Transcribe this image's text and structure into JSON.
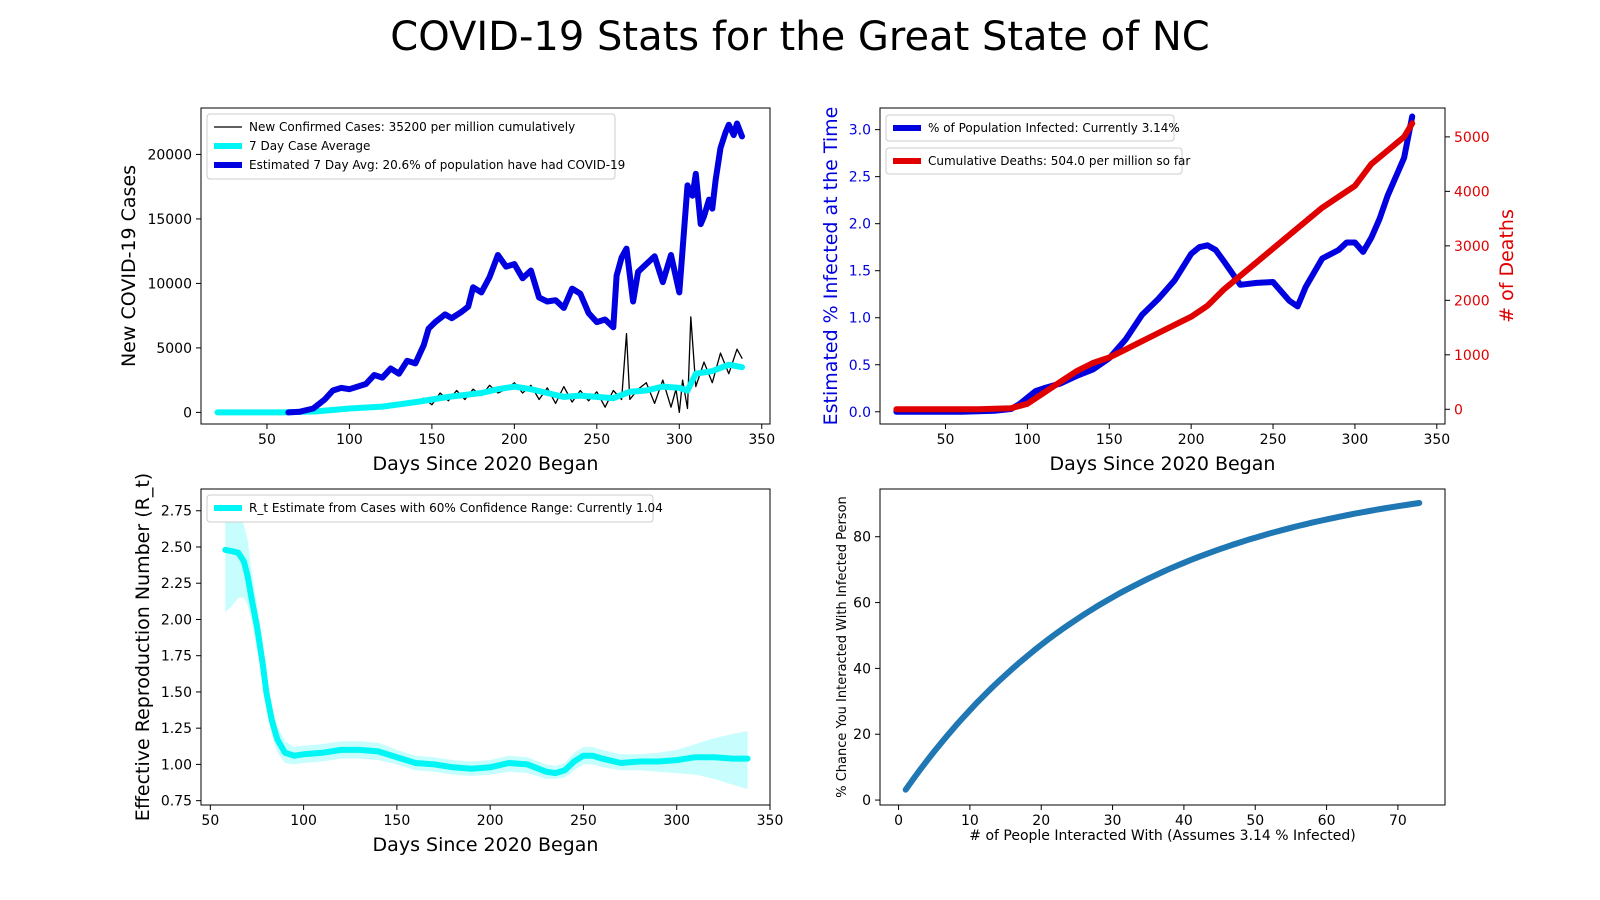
{
  "figure": {
    "suptitle": "COVID-19 Stats for the Great State of NC"
  },
  "chart_data": [
    {
      "id": "cases",
      "type": "line",
      "title": "",
      "xlabel": "Days Since 2020 Began",
      "ylabel": "New COVID-19 Cases",
      "xlim": [
        10,
        355
      ],
      "ylim": [
        -900,
        23600
      ],
      "xticks": [
        50,
        100,
        150,
        200,
        250,
        300,
        350
      ],
      "yticks": [
        0,
        5000,
        10000,
        15000,
        20000
      ],
      "grid": false,
      "legend_position": "top-left",
      "series": [
        {
          "name": "New Confirmed Cases: 35200 per million cumulatively",
          "color": "#000000",
          "x": [
            20,
            60,
            70,
            80,
            90,
            100,
            110,
            120,
            130,
            140,
            145,
            150,
            155,
            160,
            165,
            170,
            175,
            180,
            185,
            190,
            195,
            200,
            205,
            210,
            215,
            220,
            225,
            230,
            235,
            240,
            245,
            250,
            255,
            260,
            265,
            268,
            270,
            275,
            280,
            285,
            290,
            295,
            298,
            300,
            302,
            305,
            307,
            310,
            315,
            320,
            325,
            330,
            335,
            338
          ],
          "y": [
            0,
            0,
            50,
            150,
            250,
            300,
            350,
            450,
            600,
            800,
            1100,
            600,
            1500,
            900,
            1700,
            1000,
            1800,
            1300,
            2100,
            1500,
            1800,
            2300,
            1500,
            2100,
            1000,
            1900,
            700,
            2000,
            800,
            1700,
            900,
            1600,
            400,
            1700,
            1000,
            6100,
            1000,
            1800,
            2300,
            700,
            2500,
            400,
            1800,
            0,
            2500,
            300,
            7400,
            2000,
            3900,
            2300,
            4600,
            3000,
            4900,
            4200
          ]
        },
        {
          "name": "7 Day Case Average",
          "color": "#00f5f5",
          "x": [
            20,
            60,
            80,
            100,
            120,
            140,
            160,
            180,
            190,
            200,
            210,
            220,
            230,
            240,
            250,
            260,
            270,
            280,
            290,
            300,
            305,
            310,
            320,
            330,
            338
          ],
          "y": [
            0,
            0,
            80,
            300,
            450,
            800,
            1200,
            1500,
            1800,
            2000,
            1800,
            1500,
            1200,
            1300,
            1200,
            1100,
            1600,
            1700,
            2000,
            1900,
            1700,
            3000,
            3200,
            3700,
            3500
          ]
        },
        {
          "name": "Estimated 7 Day Avg: 20.6% of population have had COVID-19",
          "color": "#0000e0",
          "x": [
            63,
            70,
            78,
            85,
            90,
            95,
            100,
            110,
            115,
            120,
            125,
            130,
            135,
            140,
            145,
            148,
            152,
            158,
            162,
            168,
            172,
            175,
            180,
            185,
            190,
            195,
            200,
            205,
            210,
            215,
            220,
            225,
            230,
            235,
            240,
            245,
            250,
            255,
            260,
            262,
            265,
            268,
            272,
            275,
            280,
            285,
            290,
            295,
            300,
            305,
            308,
            310,
            313,
            315,
            318,
            320,
            322,
            325,
            328,
            330,
            333,
            335,
            338
          ],
          "y": [
            0,
            50,
            300,
            1000,
            1700,
            1900,
            1800,
            2200,
            2900,
            2700,
            3400,
            3000,
            4000,
            3800,
            5200,
            6500,
            7000,
            7600,
            7300,
            7800,
            8200,
            9700,
            9300,
            10500,
            12200,
            11300,
            11500,
            10400,
            11000,
            8900,
            8600,
            8700,
            8100,
            9600,
            9200,
            7700,
            7000,
            7200,
            6600,
            10600,
            12000,
            12700,
            8600,
            10900,
            11500,
            12100,
            10100,
            12200,
            9300,
            17600,
            16800,
            18500,
            14600,
            15200,
            16500,
            15800,
            18000,
            20500,
            21700,
            22300,
            21500,
            22400,
            21400
          ]
        }
      ]
    },
    {
      "id": "infected_deaths",
      "type": "line",
      "title": "",
      "xlabel": "Days Since 2020 Began",
      "ylabel": "Estimated % Infected at the Time",
      "y2label": "# of Deaths",
      "xlim": [
        10,
        355
      ],
      "ylim": [
        -0.13,
        3.23
      ],
      "y2lim": [
        -270,
        5530
      ],
      "xticks": [
        50,
        100,
        150,
        200,
        250,
        300,
        350
      ],
      "yticks": [
        0.0,
        0.5,
        1.0,
        1.5,
        2.0,
        2.5,
        3.0
      ],
      "y2ticks": [
        0,
        1000,
        2000,
        3000,
        4000,
        5000
      ],
      "grid": false,
      "legend_position": "top-left",
      "colors": {
        "left_axis": "#0000e0",
        "right_axis": "#e00000"
      },
      "series": [
        {
          "name": "% of Population Infected: Currently 3.14%",
          "color": "#0000e0",
          "axis": "left",
          "x": [
            20,
            60,
            80,
            90,
            95,
            100,
            105,
            110,
            120,
            130,
            140,
            150,
            160,
            170,
            180,
            190,
            200,
            205,
            210,
            215,
            220,
            230,
            240,
            250,
            260,
            265,
            270,
            280,
            290,
            295,
            300,
            305,
            310,
            315,
            320,
            325,
            330,
            335
          ],
          "y": [
            0,
            0,
            0.01,
            0.03,
            0.08,
            0.15,
            0.22,
            0.25,
            0.3,
            0.38,
            0.45,
            0.57,
            0.77,
            1.03,
            1.2,
            1.4,
            1.68,
            1.75,
            1.77,
            1.72,
            1.6,
            1.35,
            1.37,
            1.38,
            1.18,
            1.12,
            1.33,
            1.63,
            1.72,
            1.8,
            1.8,
            1.7,
            1.85,
            2.05,
            2.3,
            2.5,
            2.7,
            3.14
          ]
        },
        {
          "name": "Cumulative Deaths: 504.0 per million so far",
          "color": "#e00000",
          "axis": "right",
          "x": [
            20,
            70,
            90,
            100,
            110,
            120,
            130,
            140,
            150,
            160,
            170,
            180,
            190,
            200,
            210,
            220,
            230,
            240,
            250,
            260,
            270,
            280,
            290,
            300,
            305,
            310,
            320,
            330,
            335
          ],
          "y": [
            0,
            0,
            20,
            100,
            300,
            500,
            700,
            850,
            950,
            1100,
            1250,
            1400,
            1550,
            1700,
            1900,
            2200,
            2450,
            2700,
            2950,
            3200,
            3450,
            3700,
            3900,
            4100,
            4300,
            4500,
            4750,
            5000,
            5250
          ]
        }
      ]
    },
    {
      "id": "rt",
      "type": "line",
      "title": "",
      "xlabel": "Days Since 2020 Began",
      "ylabel": "Effective Reproduction Number (R_t)",
      "xlim": [
        45,
        350
      ],
      "ylim": [
        0.72,
        2.9
      ],
      "xticks": [
        50,
        100,
        150,
        200,
        250,
        300,
        350
      ],
      "yticks": [
        0.75,
        1.0,
        1.25,
        1.5,
        1.75,
        2.0,
        2.25,
        2.5,
        2.75
      ],
      "grid": false,
      "legend_position": "top-left",
      "series": [
        {
          "name": "R_t Estimate from Cases with 60% Confidence Range: Currently 1.04",
          "color": "#00f5f5",
          "x": [
            58,
            62,
            65,
            68,
            70,
            72,
            75,
            78,
            80,
            83,
            86,
            90,
            95,
            100,
            110,
            120,
            130,
            140,
            150,
            160,
            170,
            180,
            190,
            200,
            210,
            220,
            230,
            235,
            240,
            245,
            250,
            255,
            260,
            270,
            280,
            290,
            300,
            310,
            320,
            330,
            338
          ],
          "y": [
            2.48,
            2.47,
            2.46,
            2.4,
            2.3,
            2.15,
            1.95,
            1.7,
            1.5,
            1.3,
            1.17,
            1.08,
            1.06,
            1.07,
            1.08,
            1.1,
            1.1,
            1.09,
            1.05,
            1.01,
            1.0,
            0.98,
            0.97,
            0.98,
            1.01,
            1.0,
            0.95,
            0.94,
            0.96,
            1.02,
            1.06,
            1.06,
            1.04,
            1.01,
            1.02,
            1.02,
            1.03,
            1.05,
            1.05,
            1.04,
            1.04
          ],
          "lower": [
            2.05,
            2.1,
            2.15,
            2.15,
            2.1,
            2.0,
            1.8,
            1.55,
            1.4,
            1.2,
            1.08,
            1.01,
            1.0,
            1.01,
            1.02,
            1.04,
            1.04,
            1.03,
            1.0,
            0.96,
            0.95,
            0.93,
            0.92,
            0.93,
            0.95,
            0.94,
            0.9,
            0.9,
            0.91,
            0.96,
            1.0,
            1.0,
            0.98,
            0.96,
            0.96,
            0.95,
            0.94,
            0.93,
            0.9,
            0.86,
            0.83
          ],
          "upper": [
            2.8,
            2.8,
            2.75,
            2.65,
            2.55,
            2.35,
            2.1,
            1.85,
            1.62,
            1.4,
            1.26,
            1.16,
            1.12,
            1.13,
            1.14,
            1.16,
            1.16,
            1.15,
            1.1,
            1.06,
            1.05,
            1.03,
            1.02,
            1.03,
            1.06,
            1.05,
            1.0,
            0.99,
            1.01,
            1.08,
            1.12,
            1.12,
            1.1,
            1.07,
            1.07,
            1.08,
            1.1,
            1.14,
            1.18,
            1.21,
            1.23
          ]
        }
      ]
    },
    {
      "id": "interaction",
      "type": "line",
      "title": "",
      "xlabel": "# of People Interacted With (Assumes 3.14 % Infected)",
      "ylabel": "% Chance You Interacted With Infected Person",
      "xlim": [
        -2.6,
        76.6
      ],
      "ylim": [
        -1.5,
        94.5
      ],
      "xticks": [
        0,
        10,
        20,
        30,
        40,
        50,
        60,
        70
      ],
      "yticks": [
        0,
        20,
        40,
        60,
        80
      ],
      "grid": false,
      "infected_rate": 0.0314,
      "series": [
        {
          "name": "",
          "color": "#1f77b4",
          "x_range": [
            1,
            73
          ]
        }
      ]
    }
  ]
}
